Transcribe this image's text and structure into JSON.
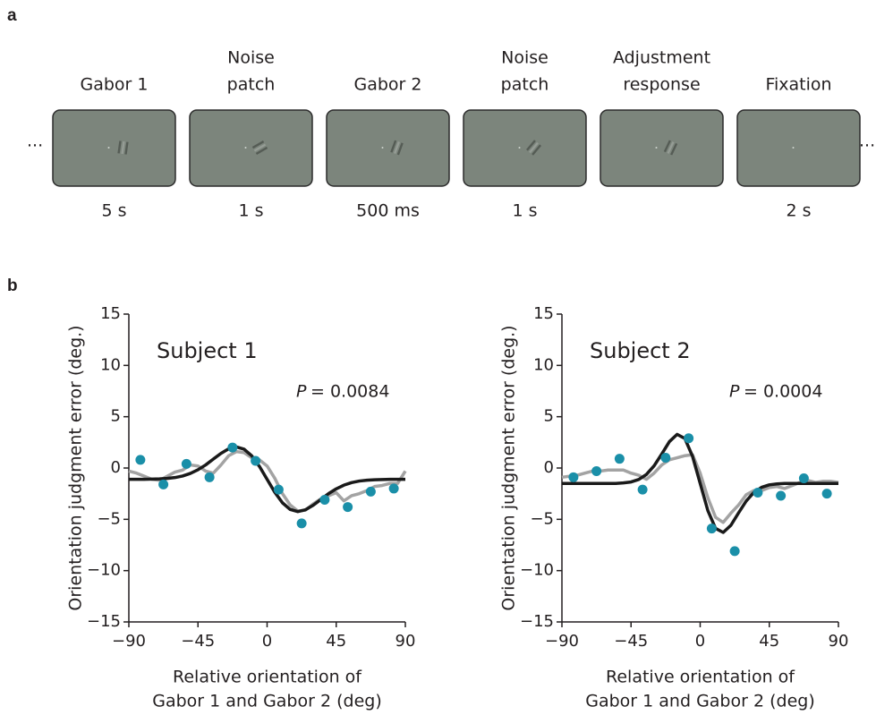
{
  "panel_labels": [
    "a",
    "b"
  ],
  "trial": {
    "ellipsis": "...",
    "steps": [
      {
        "label": [
          "Gabor 1"
        ],
        "duration": "5 s"
      },
      {
        "label": [
          "Noise",
          "patch"
        ],
        "duration": "1 s"
      },
      {
        "label": [
          "Gabor 2"
        ],
        "duration": "500 ms"
      },
      {
        "label": [
          "Noise",
          "patch"
        ],
        "duration": "1 s"
      },
      {
        "label": [
          "Adjustment",
          "response"
        ]
      },
      {
        "label": [
          "Fixation"
        ],
        "duration": "2 s"
      }
    ]
  },
  "chart_data": [
    {
      "type": "line",
      "title": "Subject 1",
      "p_symbol": "P",
      "p_value": "= 0.0084",
      "xlabel": [
        "Relative orientation of",
        "Gabor 1 and Gabor 2 (deg)"
      ],
      "ylabel": "Orientation judgment error (deg.)",
      "xlim": [
        -90,
        90
      ],
      "ylim": [
        -15,
        15
      ],
      "xticks": [
        {
          "value": -90,
          "label": "−90"
        },
        {
          "value": -45,
          "label": "−45"
        },
        0,
        45,
        90
      ],
      "yticks": [
        {
          "value": -15,
          "label": "−15"
        },
        {
          "value": -10,
          "label": "−10"
        },
        {
          "value": -5,
          "label": "−5"
        },
        0,
        5,
        10,
        15
      ],
      "series": [
        {
          "kind": "line",
          "color": "#a3a3a3",
          "x": [
            -90,
            -85,
            -80,
            -75,
            -70,
            -65,
            -60,
            -55,
            -50,
            -45,
            -40,
            -35,
            -30,
            -25,
            -20,
            -15,
            -10,
            -5,
            0,
            5,
            10,
            15,
            20,
            25,
            30,
            35,
            40,
            45,
            50,
            55,
            60,
            65,
            70,
            75,
            80,
            85,
            90
          ],
          "values": [
            -0.3,
            -0.5,
            -0.8,
            -1.1,
            -1.2,
            -0.8,
            -0.4,
            -0.2,
            0.3,
            0.2,
            -0.3,
            -0.5,
            0.3,
            1.2,
            1.6,
            1.5,
            1.0,
            0.8,
            0.2,
            -1.0,
            -2.5,
            -3.6,
            -4.2,
            -4.1,
            -3.5,
            -3.0,
            -2.7,
            -2.4,
            -3.2,
            -2.7,
            -2.5,
            -2.2,
            -1.8,
            -1.7,
            -1.5,
            -1.5,
            -0.3
          ]
        },
        {
          "kind": "line",
          "color": "#1a1a1a",
          "x": [
            -90,
            -85,
            -80,
            -75,
            -70,
            -65,
            -60,
            -55,
            -50,
            -45,
            -40,
            -35,
            -30,
            -25,
            -20,
            -15,
            -10,
            -5,
            0,
            5,
            10,
            15,
            20,
            25,
            30,
            35,
            40,
            45,
            50,
            55,
            60,
            65,
            70,
            75,
            80,
            85,
            90
          ],
          "values": [
            -1.1,
            -1.1,
            -1.1,
            -1.08,
            -1.06,
            -1.01,
            -0.93,
            -0.78,
            -0.53,
            -0.17,
            0.3,
            0.87,
            1.43,
            1.87,
            2.05,
            1.84,
            1.19,
            0.16,
            -1.1,
            -2.36,
            -3.39,
            -4.04,
            -4.25,
            -4.07,
            -3.63,
            -3.07,
            -2.5,
            -2.03,
            -1.67,
            -1.42,
            -1.27,
            -1.19,
            -1.14,
            -1.12,
            -1.1,
            -1.1,
            -1.1
          ]
        },
        {
          "kind": "points",
          "color": "#1a8fa8",
          "x": [
            -82.5,
            -67.5,
            -52.5,
            -37.5,
            -22.5,
            -7.5,
            7.5,
            22.5,
            37.5,
            52.5,
            67.5,
            82.5
          ],
          "values": [
            0.8,
            -1.6,
            0.4,
            -0.9,
            2.0,
            0.7,
            -2.1,
            -5.4,
            -3.1,
            -3.8,
            -2.3,
            -2.0
          ]
        }
      ]
    },
    {
      "type": "line",
      "title": "Subject 2",
      "p_symbol": "P",
      "p_value": "= 0.0004",
      "xlabel": [
        "Relative orientation of",
        "Gabor 1 and Gabor 2 (deg)"
      ],
      "ylabel": "Orientation judgment error (deg.)",
      "xlim": [
        -90,
        90
      ],
      "ylim": [
        -15,
        15
      ],
      "xticks": [
        {
          "value": -90,
          "label": "−90"
        },
        {
          "value": -45,
          "label": "−45"
        },
        0,
        45,
        90
      ],
      "yticks": [
        {
          "value": -15,
          "label": "−15"
        },
        {
          "value": -10,
          "label": "−10"
        },
        {
          "value": -5,
          "label": "−5"
        },
        0,
        5,
        10,
        15
      ],
      "series": [
        {
          "kind": "line",
          "color": "#a3a3a3",
          "x": [
            -90,
            -85,
            -80,
            -75,
            -70,
            -65,
            -60,
            -55,
            -50,
            -45,
            -40,
            -35,
            -30,
            -25,
            -20,
            -15,
            -10,
            -5,
            0,
            5,
            10,
            15,
            20,
            25,
            30,
            35,
            40,
            45,
            50,
            55,
            60,
            65,
            70,
            75,
            80,
            85,
            90
          ],
          "values": [
            -0.9,
            -0.8,
            -0.7,
            -0.5,
            -0.3,
            -0.3,
            -0.2,
            -0.2,
            -0.2,
            -0.5,
            -0.7,
            -1.1,
            -0.5,
            0.3,
            0.8,
            1.0,
            1.2,
            1.3,
            -0.5,
            -2.9,
            -4.8,
            -5.3,
            -4.4,
            -3.6,
            -2.6,
            -2.2,
            -2.2,
            -1.9,
            -1.8,
            -2.0,
            -1.7,
            -1.4,
            -1.2,
            -1.4,
            -1.3,
            -1.3,
            -1.4
          ]
        },
        {
          "kind": "line",
          "color": "#1a1a1a",
          "x": [
            -90,
            -85,
            -80,
            -75,
            -70,
            -65,
            -60,
            -55,
            -50,
            -45,
            -40,
            -35,
            -30,
            -25,
            -20,
            -15,
            -10,
            -5,
            0,
            5,
            10,
            15,
            20,
            25,
            30,
            35,
            40,
            45,
            50,
            55,
            60,
            65,
            70,
            75,
            80,
            85,
            90
          ],
          "values": [
            -1.5,
            -1.5,
            -1.5,
            -1.5,
            -1.5,
            -1.5,
            -1.5,
            -1.5,
            -1.45,
            -1.36,
            -1.12,
            -0.63,
            0.21,
            1.37,
            2.58,
            3.28,
            2.88,
            1.15,
            -1.5,
            -4.15,
            -5.88,
            -6.28,
            -5.58,
            -4.37,
            -3.21,
            -2.37,
            -1.88,
            -1.64,
            -1.55,
            -1.5,
            -1.5,
            -1.5,
            -1.5,
            -1.5,
            -1.5,
            -1.5,
            -1.5
          ]
        },
        {
          "kind": "points",
          "color": "#1a8fa8",
          "x": [
            -82.5,
            -67.5,
            -52.5,
            -37.5,
            -22.5,
            -7.5,
            7.5,
            22.5,
            37.5,
            52.5,
            67.5,
            82.5
          ],
          "values": [
            -0.9,
            -0.3,
            0.9,
            -2.1,
            1.0,
            2.9,
            -5.9,
            -8.1,
            -2.4,
            -2.7,
            -1.0,
            -2.5
          ]
        }
      ]
    }
  ]
}
